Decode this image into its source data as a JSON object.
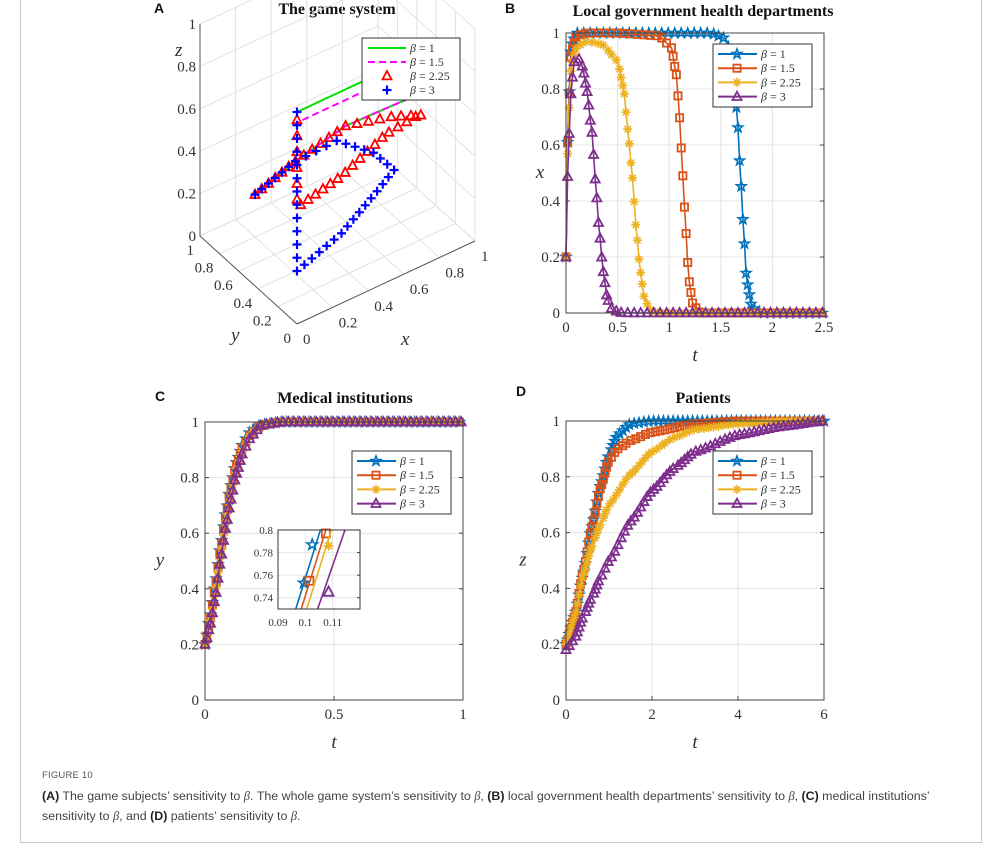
{
  "caption": {
    "figure_label": "FIGURE 10",
    "parts": [
      {
        "bold": "(A)",
        "text": " The game subjects’ sensitivity to "
      },
      {
        "math": "β"
      },
      {
        "text": ". The whole game system’s sensitivity to "
      },
      {
        "math": "β"
      },
      {
        "text": ", "
      },
      {
        "bold": "(B)",
        "text": " local government health departments’ sensitivity to "
      },
      {
        "math": "β"
      },
      {
        "text": ", "
      },
      {
        "bold": "(C)",
        "text": " medical institutions’ sensitivity to "
      },
      {
        "math": "β"
      },
      {
        "text": ", and "
      },
      {
        "bold": "(D)",
        "text": " patients’ sensitivity to "
      },
      {
        "math": "β"
      },
      {
        "text": "."
      }
    ]
  },
  "chart_data": [
    {
      "panel": "A",
      "type": "line",
      "projection": "3d",
      "title": "The game system",
      "xlabel": "x",
      "ylabel": "y",
      "zlabel": "z",
      "xlim": [
        0,
        1
      ],
      "ylim": [
        0,
        1
      ],
      "zlim": [
        0,
        1
      ],
      "xticks": [
        "0",
        "0.2",
        "0.4",
        "0.6",
        "0.8",
        "1"
      ],
      "yticks": [
        "0",
        "0.2",
        "0.4",
        "0.6",
        "0.8",
        "1"
      ],
      "zticks": [
        "0",
        "0.2",
        "0.4",
        "0.6",
        "0.8",
        "1"
      ],
      "grid": true,
      "legend_position": "top-right",
      "series": [
        {
          "name": "β = 1",
          "color": "#00e000",
          "style": "solid",
          "marker": "none",
          "points": [
            [
              0.2,
              0.8,
              0.2
            ],
            [
              0.4,
              0.75,
              0.3
            ],
            [
              0.6,
              0.6,
              0.45
            ],
            [
              0.75,
              0.35,
              0.6
            ],
            [
              0.8,
              0.1,
              0.75
            ],
            [
              0.8,
              0,
              0.9
            ],
            [
              0.8,
              0,
              1
            ],
            [
              0,
              0,
              1
            ]
          ]
        },
        {
          "name": "β = 1.5",
          "color": "#ff00ff",
          "style": "dashed",
          "marker": "none",
          "points": [
            [
              0.2,
              0.8,
              0.2
            ],
            [
              0.4,
              0.75,
              0.3
            ],
            [
              0.6,
              0.6,
              0.45
            ],
            [
              0.75,
              0.35,
              0.6
            ],
            [
              0.8,
              0.1,
              0.75
            ],
            [
              0.8,
              0,
              0.9
            ],
            [
              0.8,
              0,
              0.95
            ],
            [
              0,
              0,
              0.95
            ]
          ]
        },
        {
          "name": "β = 2.25",
          "color": "#ff0000",
          "style": "none",
          "marker": "triangle",
          "points": [
            [
              0.2,
              0.8,
              0.2
            ],
            [
              0.4,
              0.75,
              0.3
            ],
            [
              0.6,
              0.6,
              0.45
            ],
            [
              0.72,
              0.35,
              0.55
            ],
            [
              0.75,
              0.1,
              0.65
            ],
            [
              0.7,
              0,
              0.72
            ],
            [
              0.5,
              0,
              0.7
            ],
            [
              0.25,
              0,
              0.6
            ],
            [
              0,
              0,
              0.55
            ],
            [
              0,
              0,
              1
            ]
          ]
        },
        {
          "name": "β = 3",
          "color": "#0000ff",
          "style": "none",
          "marker": "plus",
          "points": [
            [
              0.2,
              0.8,
              0.2
            ],
            [
              0.4,
              0.75,
              0.3
            ],
            [
              0.55,
              0.6,
              0.4
            ],
            [
              0.62,
              0.35,
              0.42
            ],
            [
              0.6,
              0.1,
              0.45
            ],
            [
              0.45,
              0,
              0.45
            ],
            [
              0.25,
              0,
              0.33
            ],
            [
              0,
              0,
              0.25
            ],
            [
              0,
              0,
              1
            ]
          ]
        }
      ]
    },
    {
      "panel": "B",
      "type": "line",
      "title": "Local government health departments",
      "xlabel": "t",
      "ylabel": "x",
      "xlim": [
        0,
        2.5
      ],
      "ylim": [
        0,
        1
      ],
      "xticks": [
        "0",
        "0.5",
        "1",
        "1.5",
        "2",
        "2.5"
      ],
      "yticks": [
        "0",
        "0.2",
        "0.4",
        "0.6",
        "0.8",
        "1"
      ],
      "grid": true,
      "legend_position": "top-right",
      "series": [
        {
          "name": "β = 1",
          "color": "#0072bd",
          "marker": "star",
          "x": [
            0,
            0.02,
            0.05,
            0.1,
            0.2,
            0.5,
            1.0,
            1.4,
            1.55,
            1.62,
            1.66,
            1.69,
            1.72,
            1.75,
            1.8,
            1.9,
            2.5
          ],
          "y": [
            0.2,
            0.7,
            0.95,
            1.0,
            1.0,
            1.0,
            1.0,
            1.0,
            0.98,
            0.88,
            0.7,
            0.5,
            0.3,
            0.12,
            0.02,
            0,
            0
          ]
        },
        {
          "name": "β = 1.5",
          "color": "#d95319",
          "marker": "square",
          "x": [
            0,
            0.02,
            0.05,
            0.1,
            0.2,
            0.5,
            0.9,
            1.02,
            1.07,
            1.1,
            1.13,
            1.16,
            1.19,
            1.23,
            1.3,
            2.5
          ],
          "y": [
            0.2,
            0.7,
            0.93,
            0.99,
            1.0,
            1.0,
            0.99,
            0.95,
            0.85,
            0.7,
            0.5,
            0.3,
            0.12,
            0.03,
            0,
            0
          ]
        },
        {
          "name": "β = 2.25",
          "color": "#edb120",
          "marker": "asterisk",
          "x": [
            0,
            0.02,
            0.05,
            0.1,
            0.2,
            0.35,
            0.5,
            0.56,
            0.6,
            0.64,
            0.68,
            0.72,
            0.76,
            0.82,
            0.9,
            2.5
          ],
          "y": [
            0.2,
            0.65,
            0.88,
            0.95,
            0.97,
            0.96,
            0.9,
            0.8,
            0.65,
            0.5,
            0.3,
            0.15,
            0.05,
            0.01,
            0,
            0
          ]
        },
        {
          "name": "β = 3",
          "color": "#7e2f8e",
          "marker": "triangle",
          "x": [
            0,
            0.02,
            0.05,
            0.08,
            0.12,
            0.16,
            0.2,
            0.25,
            0.29,
            0.32,
            0.36,
            0.4,
            0.45,
            0.55,
            2.5
          ],
          "y": [
            0.2,
            0.55,
            0.8,
            0.9,
            0.91,
            0.88,
            0.8,
            0.65,
            0.45,
            0.3,
            0.15,
            0.05,
            0.01,
            0,
            0
          ]
        }
      ]
    },
    {
      "panel": "C",
      "type": "line",
      "title": "Medical institutions",
      "xlabel": "t",
      "ylabel": "y",
      "xlim": [
        0,
        1
      ],
      "ylim": [
        0,
        1
      ],
      "xticks": [
        "0",
        "0.5",
        "1"
      ],
      "yticks": [
        "0",
        "0.2",
        "0.4",
        "0.6",
        "0.8",
        "1"
      ],
      "grid": true,
      "legend_position": "top-right",
      "series": [
        {
          "name": "β = 1",
          "color": "#0072bd",
          "marker": "star",
          "x": [
            0,
            0.02,
            0.04,
            0.06,
            0.08,
            0.1,
            0.12,
            0.15,
            0.18,
            0.22,
            0.3,
            0.5,
            1.0
          ],
          "y": [
            0.2,
            0.3,
            0.42,
            0.55,
            0.67,
            0.77,
            0.85,
            0.93,
            0.97,
            0.99,
            1.0,
            1.0,
            1.0
          ]
        },
        {
          "name": "β = 1.5",
          "color": "#d95319",
          "marker": "square",
          "x": [
            0,
            0.02,
            0.04,
            0.06,
            0.08,
            0.1,
            0.12,
            0.15,
            0.18,
            0.22,
            0.3,
            0.5,
            1.0
          ],
          "y": [
            0.2,
            0.29,
            0.41,
            0.54,
            0.66,
            0.76,
            0.84,
            0.92,
            0.96,
            0.99,
            1.0,
            1.0,
            1.0
          ]
        },
        {
          "name": "β = 2.25",
          "color": "#edb120",
          "marker": "asterisk",
          "x": [
            0,
            0.02,
            0.04,
            0.06,
            0.08,
            0.1,
            0.12,
            0.15,
            0.18,
            0.22,
            0.3,
            0.5,
            1.0
          ],
          "y": [
            0.2,
            0.28,
            0.39,
            0.52,
            0.64,
            0.74,
            0.83,
            0.91,
            0.96,
            0.99,
            1.0,
            1.0,
            1.0
          ]
        },
        {
          "name": "β = 3",
          "color": "#7e2f8e",
          "marker": "triangle",
          "x": [
            0,
            0.02,
            0.04,
            0.06,
            0.08,
            0.1,
            0.12,
            0.15,
            0.18,
            0.22,
            0.3,
            0.5,
            1.0
          ],
          "y": [
            0.2,
            0.27,
            0.37,
            0.5,
            0.62,
            0.72,
            0.81,
            0.9,
            0.95,
            0.99,
            1.0,
            1.0,
            1.0
          ]
        }
      ],
      "inset": {
        "xlim": [
          0.09,
          0.12
        ],
        "ylim": [
          0.73,
          0.8
        ],
        "xticks": [
          "0.09",
          "0.1",
          "0.11"
        ],
        "yticks": [
          "0.74",
          "0.76",
          "0.78",
          "0.8"
        ],
        "lines": [
          {
            "color": "#0072bd",
            "marker": "star",
            "x": [
              0.0965,
              0.1055
            ],
            "y": [
              0.73,
              0.8
            ],
            "markers": [
              [
                0.0995,
                0.753
              ],
              [
                0.1025,
                0.787
              ]
            ]
          },
          {
            "color": "#d95319",
            "marker": "square",
            "x": [
              0.0985,
              0.1075
            ],
            "y": [
              0.73,
              0.8
            ],
            "markers": [
              [
                0.1015,
                0.755
              ],
              [
                0.1075,
                0.797
              ]
            ]
          },
          {
            "color": "#edb120",
            "marker": "asterisk",
            "x": [
              0.1005,
              0.1095
            ],
            "y": [
              0.73,
              0.8
            ],
            "markers": [
              [
                0.1085,
                0.786
              ]
            ]
          },
          {
            "color": "#7e2f8e",
            "marker": "triangle",
            "x": [
              0.1045,
              0.1145
            ],
            "y": [
              0.73,
              0.8
            ],
            "markers": [
              [
                0.1085,
                0.745
              ]
            ]
          }
        ]
      }
    },
    {
      "panel": "D",
      "type": "line",
      "title": "Patients",
      "xlabel": "t",
      "ylabel": "z",
      "xlim": [
        0,
        6
      ],
      "ylim": [
        0,
        1
      ],
      "xticks": [
        "0",
        "2",
        "4",
        "6"
      ],
      "yticks": [
        "0",
        "0.2",
        "0.4",
        "0.6",
        "0.8",
        "1"
      ],
      "grid": true,
      "legend_position": "top-right",
      "series": [
        {
          "name": "β = 1",
          "color": "#0072bd",
          "marker": "star",
          "x": [
            0,
            0.2,
            0.4,
            0.6,
            0.8,
            1.0,
            1.2,
            1.5,
            2.0,
            3.0,
            4.0,
            6.0
          ],
          "y": [
            0.2,
            0.3,
            0.45,
            0.62,
            0.77,
            0.88,
            0.95,
            0.99,
            1.0,
            1.0,
            1.0,
            1.0
          ]
        },
        {
          "name": "β = 1.5",
          "color": "#d95319",
          "marker": "square",
          "x": [
            0,
            0.2,
            0.4,
            0.6,
            0.8,
            1.0,
            1.2,
            1.5,
            2.0,
            3.0,
            4.0,
            6.0
          ],
          "y": [
            0.2,
            0.3,
            0.46,
            0.62,
            0.76,
            0.86,
            0.9,
            0.93,
            0.96,
            0.99,
            1.0,
            1.0
          ]
        },
        {
          "name": "β = 2.25",
          "color": "#edb120",
          "marker": "asterisk",
          "x": [
            0,
            0.2,
            0.4,
            0.6,
            0.8,
            1.0,
            1.5,
            2.0,
            2.5,
            3.0,
            4.0,
            5.0,
            6.0
          ],
          "y": [
            0.2,
            0.3,
            0.45,
            0.55,
            0.63,
            0.7,
            0.81,
            0.89,
            0.94,
            0.97,
            0.99,
            1.0,
            1.0
          ]
        },
        {
          "name": "β = 3",
          "color": "#7e2f8e",
          "marker": "triangle",
          "x": [
            0,
            0.2,
            0.4,
            0.6,
            0.8,
            1.0,
            1.5,
            2.0,
            2.5,
            3.0,
            4.0,
            5.0,
            6.0
          ],
          "y": [
            0.18,
            0.22,
            0.3,
            0.37,
            0.44,
            0.5,
            0.64,
            0.75,
            0.83,
            0.89,
            0.95,
            0.98,
            1.0
          ]
        }
      ]
    }
  ]
}
